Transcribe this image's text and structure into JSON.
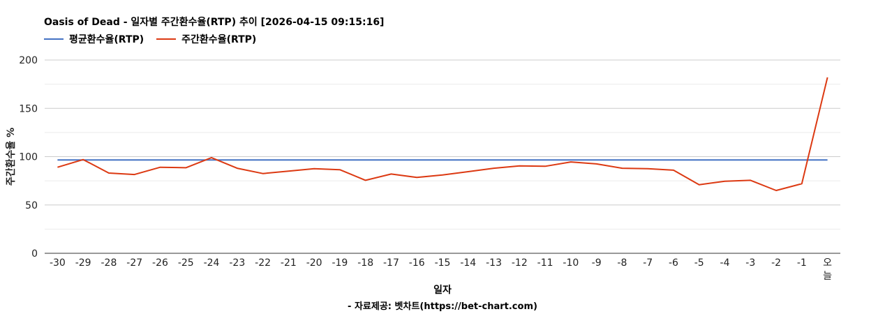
{
  "chart_data": {
    "type": "line",
    "title": "Oasis of Dead - 일자별 주간환수율(RTP) 추이 [2026-04-15 09:15:16]",
    "xlabel": "일자",
    "ylabel": "주간환수율 %",
    "ylim": [
      0,
      200
    ],
    "yticks": [
      0,
      50,
      100,
      150,
      200
    ],
    "grid": true,
    "legend_position": "top-left",
    "categories": [
      "-30",
      "-29",
      "-28",
      "-27",
      "-26",
      "-25",
      "-24",
      "-23",
      "-22",
      "-21",
      "-20",
      "-19",
      "-18",
      "-17",
      "-16",
      "-15",
      "-14",
      "-13",
      "-12",
      "-11",
      "-10",
      "-9",
      "-8",
      "-7",
      "-6",
      "-5",
      "-4",
      "-3",
      "-2",
      "-1",
      "오늘"
    ],
    "series": [
      {
        "name": "평균환수율(RTP)",
        "color": "#4472c4",
        "values": [
          96.5,
          96.5,
          96.5,
          96.5,
          96.5,
          96.5,
          96.5,
          96.5,
          96.5,
          96.5,
          96.5,
          96.5,
          96.5,
          96.5,
          96.5,
          96.5,
          96.5,
          96.5,
          96.5,
          96.5,
          96.5,
          96.5,
          96.5,
          96.5,
          96.5,
          96.5,
          96.5,
          96.5,
          96.5,
          96.5,
          96.5
        ]
      },
      {
        "name": "주간환수율(RTP)",
        "color": "#dc3912",
        "values": [
          89,
          97,
          83,
          81.5,
          89,
          88.5,
          99,
          88,
          82.5,
          85,
          87.5,
          86.5,
          75.5,
          82,
          78.5,
          81,
          84.5,
          88,
          90.5,
          90,
          94.5,
          92.5,
          88,
          87.5,
          86,
          71,
          74.5,
          75.5,
          65,
          72,
          182
        ]
      }
    ],
    "source": "- 자료제공: 벳차트(https://bet-chart.com)"
  }
}
